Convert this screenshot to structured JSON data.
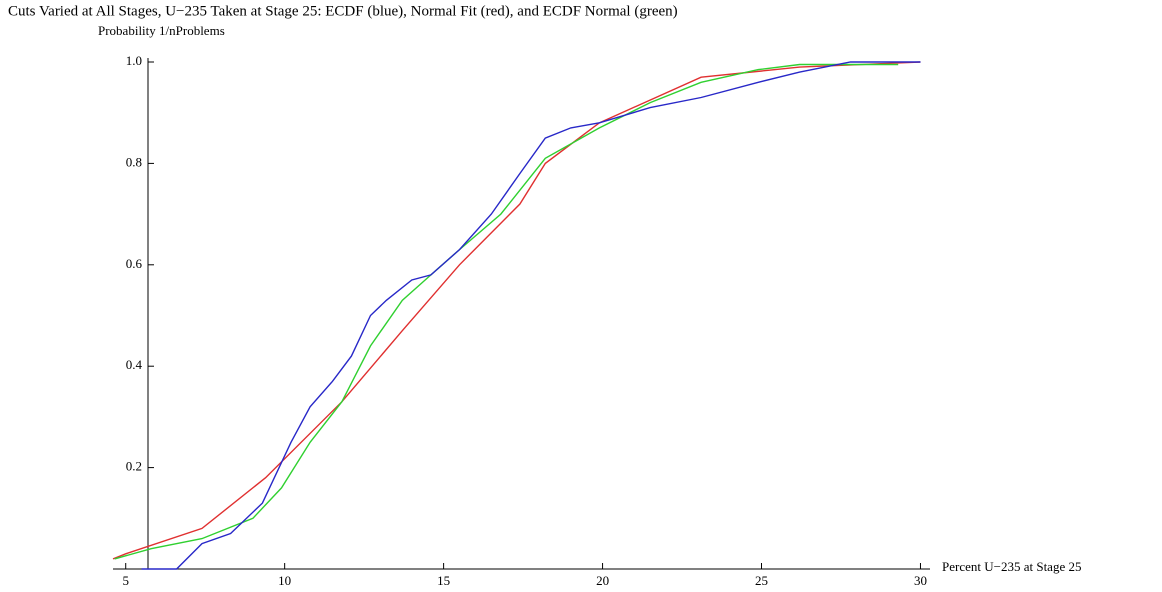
{
  "chart_data": {
    "type": "line",
    "title": "Cuts Varied at All Stages, U−235 Taken at Stage 25:  ECDF (blue), Normal Fit (red), and ECDF Normal (green)",
    "y_label": "Probability 1/nProblems",
    "x_label": "Percent U−235 at Stage 25",
    "xlim": [
      4.6,
      30.3
    ],
    "ylim": [
      0,
      1
    ],
    "xticks": [
      5,
      10,
      15,
      20,
      25,
      30
    ],
    "yticks": [
      0.2,
      0.4,
      0.6,
      0.8,
      {
        "value": 1,
        "label": "1.0"
      }
    ],
    "series": [
      {
        "color": "#e03030",
        "x": [
          4.6,
          5.0,
          7.4,
          9.4,
          11.8,
          13.7,
          15.5,
          17.4,
          18.2,
          19.9,
          23.1,
          26.2,
          30.0
        ],
        "values": [
          0.02,
          0.03,
          0.08,
          0.18,
          0.33,
          0.47,
          0.6,
          0.72,
          0.8,
          0.88,
          0.97,
          0.99,
          1.0
        ]
      },
      {
        "color": "#30d030",
        "x": [
          4.65,
          5.8,
          7.4,
          9.0,
          9.9,
          10.8,
          11.8,
          12.7,
          13.7,
          14.6,
          15.5,
          16.8,
          18.2,
          19.9,
          21.5,
          23.1,
          24.9,
          26.2,
          29.3
        ],
        "values": [
          0.02,
          0.04,
          0.06,
          0.1,
          0.16,
          0.25,
          0.33,
          0.44,
          0.53,
          0.58,
          0.63,
          0.7,
          0.81,
          0.87,
          0.92,
          0.96,
          0.985,
          0.995,
          0.995
        ]
      },
      {
        "color": "#2828c8",
        "x": [
          5.5,
          6.6,
          7.4,
          8.3,
          9.3,
          10.2,
          10.8,
          11.5,
          12.1,
          12.7,
          13.2,
          14.0,
          14.6,
          15.5,
          16.5,
          17.4,
          18.2,
          19.0,
          19.9,
          21.5,
          23.1,
          24.9,
          26.2,
          27.8,
          30.0
        ],
        "values": [
          0.0,
          0.0,
          0.05,
          0.07,
          0.13,
          0.25,
          0.32,
          0.37,
          0.42,
          0.5,
          0.53,
          0.57,
          0.58,
          0.63,
          0.7,
          0.78,
          0.85,
          0.87,
          0.88,
          0.91,
          0.93,
          0.96,
          0.98,
          1.0,
          1.0
        ]
      }
    ]
  }
}
